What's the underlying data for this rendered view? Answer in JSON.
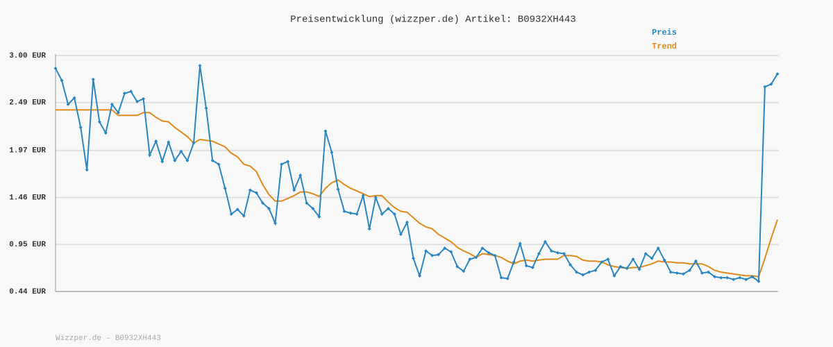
{
  "chart_data": {
    "type": "line",
    "title": "Preisentwicklung (wizzper.de) Artikel: B0932XH443",
    "footer": "Wizzper.de – B0932XH443",
    "ylim": [
      0.44,
      3.0
    ],
    "yticks": [
      {
        "value": 0.44,
        "label": "0.44 EUR"
      },
      {
        "value": 0.95,
        "label": "0.95 EUR"
      },
      {
        "value": 1.46,
        "label": "1.46 EUR"
      },
      {
        "value": 1.97,
        "label": "1.97 EUR"
      },
      {
        "value": 2.49,
        "label": "2.49 EUR"
      },
      {
        "value": 3.0,
        "label": "3.00 EUR"
      }
    ],
    "grid": true,
    "legend": "top-right",
    "series": [
      {
        "name": "Preis",
        "color": "#2a86c0",
        "markers": true,
        "values": [
          2.86,
          2.73,
          2.47,
          2.54,
          2.22,
          1.76,
          2.74,
          2.28,
          2.16,
          2.47,
          2.38,
          2.59,
          2.61,
          2.5,
          2.53,
          1.92,
          2.07,
          1.85,
          2.06,
          1.86,
          1.96,
          1.86,
          2.05,
          2.89,
          2.43,
          1.86,
          1.82,
          1.56,
          1.28,
          1.33,
          1.26,
          1.54,
          1.51,
          1.4,
          1.34,
          1.18,
          1.82,
          1.85,
          1.54,
          1.7,
          1.4,
          1.34,
          1.25,
          2.18,
          1.95,
          1.55,
          1.31,
          1.29,
          1.28,
          1.48,
          1.12,
          1.46,
          1.28,
          1.34,
          1.28,
          1.06,
          1.19,
          0.8,
          0.61,
          0.88,
          0.83,
          0.84,
          0.91,
          0.87,
          0.71,
          0.66,
          0.79,
          0.81,
          0.91,
          0.86,
          0.83,
          0.59,
          0.58,
          0.76,
          0.96,
          0.72,
          0.7,
          0.85,
          0.98,
          0.88,
          0.86,
          0.85,
          0.73,
          0.65,
          0.62,
          0.65,
          0.67,
          0.76,
          0.79,
          0.61,
          0.71,
          0.69,
          0.79,
          0.68,
          0.85,
          0.8,
          0.91,
          0.78,
          0.65,
          0.64,
          0.63,
          0.67,
          0.77,
          0.64,
          0.65,
          0.6,
          0.59,
          0.59,
          0.57,
          0.59,
          0.57,
          0.6,
          0.55,
          2.66,
          2.69,
          2.8
        ]
      },
      {
        "name": "Trend",
        "color": "#e08a1e",
        "markers": false,
        "values": [
          2.41,
          2.41,
          2.41,
          2.41,
          2.41,
          2.41,
          2.41,
          2.41,
          2.41,
          2.41,
          2.35,
          2.35,
          2.35,
          2.35,
          2.38,
          2.38,
          2.33,
          2.29,
          2.28,
          2.22,
          2.17,
          2.12,
          2.05,
          2.09,
          2.08,
          2.07,
          2.04,
          2.01,
          1.94,
          1.9,
          1.82,
          1.8,
          1.74,
          1.6,
          1.49,
          1.42,
          1.42,
          1.45,
          1.48,
          1.52,
          1.52,
          1.5,
          1.47,
          1.56,
          1.62,
          1.65,
          1.6,
          1.56,
          1.53,
          1.5,
          1.47,
          1.48,
          1.48,
          1.41,
          1.35,
          1.31,
          1.3,
          1.24,
          1.18,
          1.14,
          1.12,
          1.06,
          1.02,
          0.98,
          0.92,
          0.88,
          0.85,
          0.81,
          0.85,
          0.84,
          0.83,
          0.81,
          0.77,
          0.74,
          0.77,
          0.78,
          0.77,
          0.78,
          0.79,
          0.79,
          0.79,
          0.83,
          0.83,
          0.82,
          0.78,
          0.77,
          0.77,
          0.76,
          0.73,
          0.71,
          0.7,
          0.69,
          0.7,
          0.7,
          0.72,
          0.74,
          0.77,
          0.76,
          0.76,
          0.75,
          0.75,
          0.74,
          0.74,
          0.74,
          0.71,
          0.67,
          0.65,
          0.64,
          0.63,
          0.62,
          0.61,
          0.61,
          0.6,
          0.8,
          1.02,
          1.22
        ]
      }
    ]
  }
}
